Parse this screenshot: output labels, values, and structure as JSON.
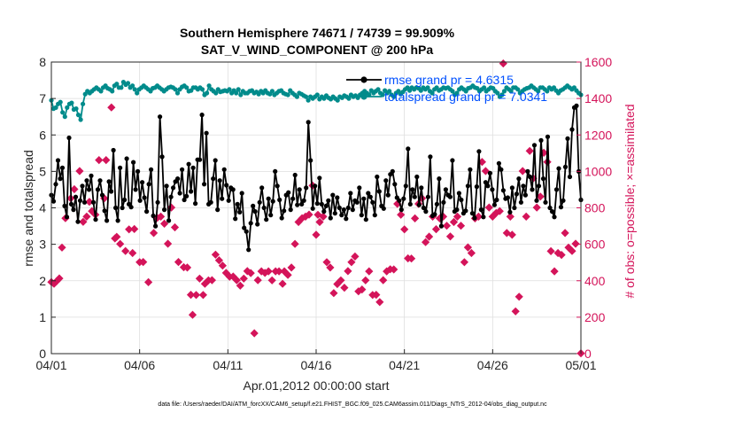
{
  "title_line1": "Southern Hemisphere 74671 / 74739 = 99.909%",
  "title_line2": "SAT_V_WIND_COMPONENT @ 200 hPa",
  "xlabel": "Apr.01,2012 00:00:00 start",
  "ylabel_left": "rmse and totalspread",
  "ylabel_right": "# of obs: o=possible; ×=assimilated",
  "footer": "data file: /Users/raeder/DAI/ATM_forcXX/CAM6_setup/f.e21.FHIST_BGC.f09_025.CAM6assim.011/Diags_NTrS_2012-04/obs_diag_output.nc",
  "colors": {
    "rmse": "#000000",
    "spread": "#008b8b",
    "obs": "#d4145a",
    "legend_text": "#0050ff",
    "right_axis": "#d4145a"
  },
  "chart_data": {
    "type": "line",
    "x_ticks": [
      "04/01",
      "04/06",
      "04/11",
      "04/16",
      "04/21",
      "04/26",
      "05/01"
    ],
    "xlim": [
      0,
      30
    ],
    "ylim_left": [
      0,
      8
    ],
    "ylim_right": [
      0,
      1600
    ],
    "y_ticks_left": [
      "0",
      "1",
      "2",
      "3",
      "4",
      "5",
      "6",
      "7",
      "8"
    ],
    "y_ticks_right": [
      "0",
      "200",
      "400",
      "600",
      "800",
      "1000",
      "1200",
      "1400",
      "1600"
    ],
    "legend": {
      "position": "top-right",
      "entries": [
        "rmse grand pr = 4.6315",
        "totalspread grand pr = 7.0341"
      ]
    },
    "series": [
      {
        "name": "rmse grand pr = 4.6315",
        "axis": "left",
        "values": [
          4.35,
          4.18,
          4.65,
          5.3,
          4.8,
          5.1,
          4.05,
          3.75,
          5.92,
          4.1,
          3.95,
          4.3,
          3.62,
          4.2,
          4.6,
          4.15,
          4.75,
          4.5,
          4.88,
          4.15,
          3.68,
          4.5,
          4.75,
          4.35,
          3.92,
          3.65,
          4.72,
          4.45,
          5.58,
          4.0,
          3.65,
          5.1,
          4.0,
          4.22,
          5.35,
          4.1,
          4.02,
          5.25,
          4.5,
          5.0,
          4.2,
          4.7,
          4.28,
          3.9,
          4.65,
          5.05,
          3.78,
          3.5,
          4.15,
          6.5,
          5.4,
          3.95,
          4.6,
          3.65,
          4.3,
          4.55,
          4.72,
          4.8,
          4.4,
          5.05,
          4.22,
          4.32,
          5.2,
          4.45,
          5.1,
          4.12,
          5.32,
          5.32,
          6.55,
          4.65,
          6.05,
          4.1,
          4.15,
          4.8,
          5.3,
          3.95,
          4.75,
          4.25,
          5.05,
          4.62,
          4.2,
          4.55,
          4.5,
          3.7,
          4.1,
          3.88,
          4.4,
          3.45,
          3.35,
          2.85,
          3.58,
          4.05,
          3.9,
          3.55,
          4.15,
          4.55,
          4.0,
          3.68,
          4.25,
          3.8,
          4.18,
          5.0,
          4.6,
          4.22,
          3.72,
          3.92,
          4.35,
          4.42,
          3.95,
          4.25,
          4.9,
          4.08,
          4.5,
          4.1,
          4.2,
          4.55,
          6.35,
          5.3,
          3.98,
          4.6,
          4.12,
          4.82,
          4.1,
          3.9,
          4.05,
          4.2,
          3.72,
          4.35,
          3.85,
          4.28,
          4.0,
          3.8,
          3.95,
          3.7,
          4.0,
          4.4,
          3.95,
          4.2,
          4.15,
          4.55,
          3.8,
          4.25,
          3.68,
          4.4,
          4.3,
          4.15,
          3.8,
          4.85,
          4.45,
          4.05,
          3.98,
          4.75,
          4.35,
          4.92,
          5.0,
          4.65,
          4.28,
          4.2,
          3.95,
          4.25,
          4.6,
          5.62,
          4.1,
          4.5,
          4.3,
          4.85,
          4.08,
          4.55,
          4.0,
          3.9,
          4.3,
          5.4,
          3.78,
          3.82,
          4.1,
          4.8,
          3.5,
          4.15,
          4.5,
          4.35,
          4.3,
          5.3,
          3.9,
          3.95,
          4.4,
          4.22,
          3.85,
          3.92,
          4.6,
          5.05,
          3.85,
          3.72,
          4.58,
          5.55,
          3.95,
          3.75,
          4.7,
          4.6,
          4.95,
          4.5,
          4.08,
          4.22,
          5.22,
          5.05,
          4.48,
          4.25,
          4.28,
          3.88,
          4.55,
          4.0,
          4.38,
          4.8,
          4.15,
          4.6,
          4.35,
          5.0,
          4.85,
          4.5,
          5.72,
          4.2,
          4.6,
          5.85,
          4.8,
          4.15,
          5.95,
          4.0,
          3.9,
          3.75,
          4.5,
          5.08,
          4.02,
          4.2,
          5.12,
          5.9,
          4.85,
          6.15,
          6.75,
          6.8,
          5.0,
          4.22
        ]
      },
      {
        "name": "totalspread grand pr = 7.0341",
        "axis": "left",
        "values": [
          6.95,
          6.72,
          6.75,
          6.85,
          6.9,
          6.62,
          6.5,
          6.75,
          6.85,
          6.88,
          6.7,
          6.72,
          6.55,
          6.42,
          6.85,
          7.12,
          7.2,
          7.15,
          7.2,
          7.25,
          7.3,
          7.25,
          7.2,
          7.3,
          7.35,
          7.28,
          7.25,
          7.2,
          7.35,
          7.4,
          7.3,
          7.3,
          7.45,
          7.38,
          7.42,
          7.3,
          7.35,
          7.25,
          7.15,
          7.25,
          7.3,
          7.35,
          7.3,
          7.25,
          7.2,
          7.28,
          7.3,
          7.35,
          7.3,
          7.25,
          7.2,
          7.25,
          7.3,
          7.32,
          7.3,
          7.25,
          7.15,
          7.25,
          7.32,
          7.35,
          7.3,
          7.2,
          7.22,
          7.3,
          7.3,
          7.25,
          7.3,
          7.25,
          7.1,
          7.15,
          7.35,
          7.25,
          7.2,
          7.15,
          7.25,
          7.18,
          7.2,
          7.22,
          7.2,
          7.25,
          7.15,
          7.22,
          7.15,
          7.25,
          7.1,
          7.2,
          7.15,
          7.15,
          7.2,
          7.22,
          7.15,
          7.18,
          7.12,
          7.2,
          7.15,
          7.22,
          7.15,
          7.12,
          7.2,
          7.1,
          7.15,
          7.2,
          7.22,
          7.15,
          7.12,
          7.1,
          7.22,
          7.15,
          7.1,
          7.05,
          7.15,
          7.12,
          7.08,
          7.05,
          6.95,
          7.05,
          7.0,
          7.05,
          7.1,
          6.98,
          7.05,
          7.0,
          7.08,
          7.02,
          6.98,
          7.05,
          7.0,
          6.95,
          7.05,
          7.02,
          7.08,
          7.05,
          7.0,
          7.1,
          7.05,
          7.08,
          7.02,
          7.1,
          7.15,
          7.2,
          7.15,
          7.1,
          7.22,
          7.15,
          7.2,
          7.25,
          7.15,
          7.1,
          7.22,
          7.15,
          7.2,
          7.1,
          7.05,
          7.15,
          7.2,
          7.12,
          7.18,
          7.25,
          7.3,
          7.22,
          7.3,
          7.25,
          7.3,
          7.28,
          7.22,
          7.3,
          7.25,
          7.3,
          7.2,
          7.15,
          7.25,
          7.3,
          7.22,
          7.25,
          7.3,
          7.28,
          7.3,
          7.25,
          7.2,
          7.1,
          7.15,
          7.25,
          7.3,
          7.25,
          7.2,
          7.28,
          7.3,
          7.35,
          7.3,
          7.28,
          7.2,
          7.25,
          7.3,
          7.2,
          7.25,
          7.3,
          7.28,
          7.2,
          7.15,
          7.05,
          7.1,
          7.2,
          7.3,
          7.25,
          7.2,
          7.3,
          7.3,
          7.25,
          7.15,
          7.2,
          7.25,
          7.28,
          7.3,
          7.35,
          7.3,
          7.25,
          7.2,
          7.3,
          7.3,
          7.25,
          7.2,
          7.3,
          7.25,
          7.3,
          7.22,
          7.15,
          7.22,
          7.25,
          7.3,
          7.35,
          7.3,
          7.25,
          7.3,
          7.22,
          7.15,
          7.1
        ]
      },
      {
        "name": "",
        "axis": "right",
        "marker": "x",
        "points": [
          [
            0.0,
            393
          ],
          [
            0.15,
            383
          ],
          [
            0.3,
            398
          ],
          [
            0.45,
            413
          ],
          [
            0.6,
            582
          ],
          [
            0.8,
            743
          ],
          [
            1.1,
            852
          ],
          [
            1.3,
            902
          ],
          [
            1.6,
            1002
          ],
          [
            1.8,
            723
          ],
          [
            2.0,
            752
          ],
          [
            2.15,
            833
          ],
          [
            2.3,
            782
          ],
          [
            2.5,
            762
          ],
          [
            2.7,
            1062
          ],
          [
            3.0,
            852
          ],
          [
            3.1,
            1062
          ],
          [
            3.4,
            1351
          ],
          [
            3.6,
            632
          ],
          [
            3.7,
            641
          ],
          [
            3.9,
            602
          ],
          [
            4.2,
            563
          ],
          [
            4.4,
            682
          ],
          [
            4.6,
            552
          ],
          [
            4.7,
            684
          ],
          [
            5.0,
            502
          ],
          [
            5.2,
            503
          ],
          [
            5.5,
            392
          ],
          [
            5.8,
            662
          ],
          [
            6.0,
            745
          ],
          [
            6.2,
            752
          ],
          [
            6.4,
            713
          ],
          [
            6.6,
            603
          ],
          [
            6.8,
            802
          ],
          [
            7.0,
            693
          ],
          [
            7.2,
            503
          ],
          [
            7.5,
            474
          ],
          [
            7.7,
            472
          ],
          [
            7.9,
            323
          ],
          [
            8.0,
            213
          ],
          [
            8.2,
            322
          ],
          [
            8.4,
            412
          ],
          [
            8.6,
            322
          ],
          [
            8.7,
            383
          ],
          [
            8.9,
            402
          ],
          [
            9.1,
            403
          ],
          [
            9.3,
            543
          ],
          [
            9.5,
            512
          ],
          [
            9.7,
            483
          ],
          [
            9.9,
            443
          ],
          [
            10.1,
            422
          ],
          [
            10.3,
            423
          ],
          [
            10.5,
            403
          ],
          [
            10.7,
            373
          ],
          [
            10.9,
            412
          ],
          [
            11.1,
            453
          ],
          [
            11.3,
            442
          ],
          [
            11.5,
            112
          ],
          [
            11.7,
            403
          ],
          [
            11.9,
            452
          ],
          [
            12.1,
            443
          ],
          [
            12.3,
            452
          ],
          [
            12.5,
            402
          ],
          [
            12.7,
            452
          ],
          [
            12.9,
            452
          ],
          [
            13.1,
            383
          ],
          [
            13.2,
            452
          ],
          [
            13.4,
            432
          ],
          [
            13.6,
            472
          ],
          [
            13.8,
            602
          ],
          [
            14.0,
            722
          ],
          [
            14.2,
            743
          ],
          [
            14.4,
            752
          ],
          [
            14.6,
            763
          ],
          [
            14.8,
            922
          ],
          [
            15.0,
            652
          ],
          [
            15.1,
            762
          ],
          [
            15.2,
            722
          ],
          [
            15.4,
            752
          ],
          [
            15.6,
            502
          ],
          [
            15.8,
            472
          ],
          [
            16.0,
            332
          ],
          [
            16.2,
            382
          ],
          [
            16.4,
            402
          ],
          [
            16.6,
            362
          ],
          [
            16.8,
            453
          ],
          [
            17.0,
            502
          ],
          [
            17.2,
            533
          ],
          [
            17.4,
            342
          ],
          [
            17.6,
            352
          ],
          [
            17.8,
            402
          ],
          [
            18.0,
            452
          ],
          [
            18.2,
            322
          ],
          [
            18.4,
            323
          ],
          [
            18.6,
            283
          ],
          [
            18.8,
            403
          ],
          [
            19.0,
            452
          ],
          [
            19.2,
            463
          ],
          [
            19.4,
            462
          ],
          [
            19.6,
            822
          ],
          [
            19.8,
            762
          ],
          [
            20.0,
            682
          ],
          [
            20.2,
            523
          ],
          [
            20.4,
            522
          ],
          [
            20.6,
            742
          ],
          [
            20.8,
            822
          ],
          [
            21.0,
            852
          ],
          [
            21.2,
            612
          ],
          [
            21.4,
            642
          ],
          [
            21.6,
            752
          ],
          [
            21.8,
            683
          ],
          [
            22.0,
            742
          ],
          [
            22.2,
            752
          ],
          [
            22.4,
            702
          ],
          [
            22.6,
            643
          ],
          [
            22.8,
            722
          ],
          [
            23.0,
            752
          ],
          [
            23.2,
            702
          ],
          [
            23.4,
            502
          ],
          [
            23.6,
            583
          ],
          [
            23.8,
            552
          ],
          [
            24.0,
            742
          ],
          [
            24.2,
            752
          ],
          [
            24.4,
            1052
          ],
          [
            24.6,
            1002
          ],
          [
            24.8,
            802
          ],
          [
            25.0,
            752
          ],
          [
            25.2,
            772
          ],
          [
            25.4,
            782
          ],
          [
            25.6,
            1592
          ],
          [
            25.8,
            662
          ],
          [
            26.0,
            752
          ],
          [
            26.1,
            652
          ],
          [
            26.3,
            232
          ],
          [
            26.5,
            312
          ],
          [
            26.7,
            1002
          ],
          [
            26.9,
            752
          ],
          [
            27.1,
            1112
          ],
          [
            27.3,
            962
          ],
          [
            27.5,
            802
          ],
          [
            27.7,
            862
          ],
          [
            27.9,
            1102
          ],
          [
            28.1,
            1052
          ],
          [
            28.3,
            562
          ],
          [
            28.5,
            452
          ],
          [
            28.7,
            552
          ],
          [
            28.9,
            542
          ],
          [
            29.1,
            662
          ],
          [
            29.3,
            582
          ],
          [
            29.5,
            563
          ],
          [
            29.7,
            603
          ],
          [
            30.0,
            2
          ]
        ]
      }
    ]
  }
}
